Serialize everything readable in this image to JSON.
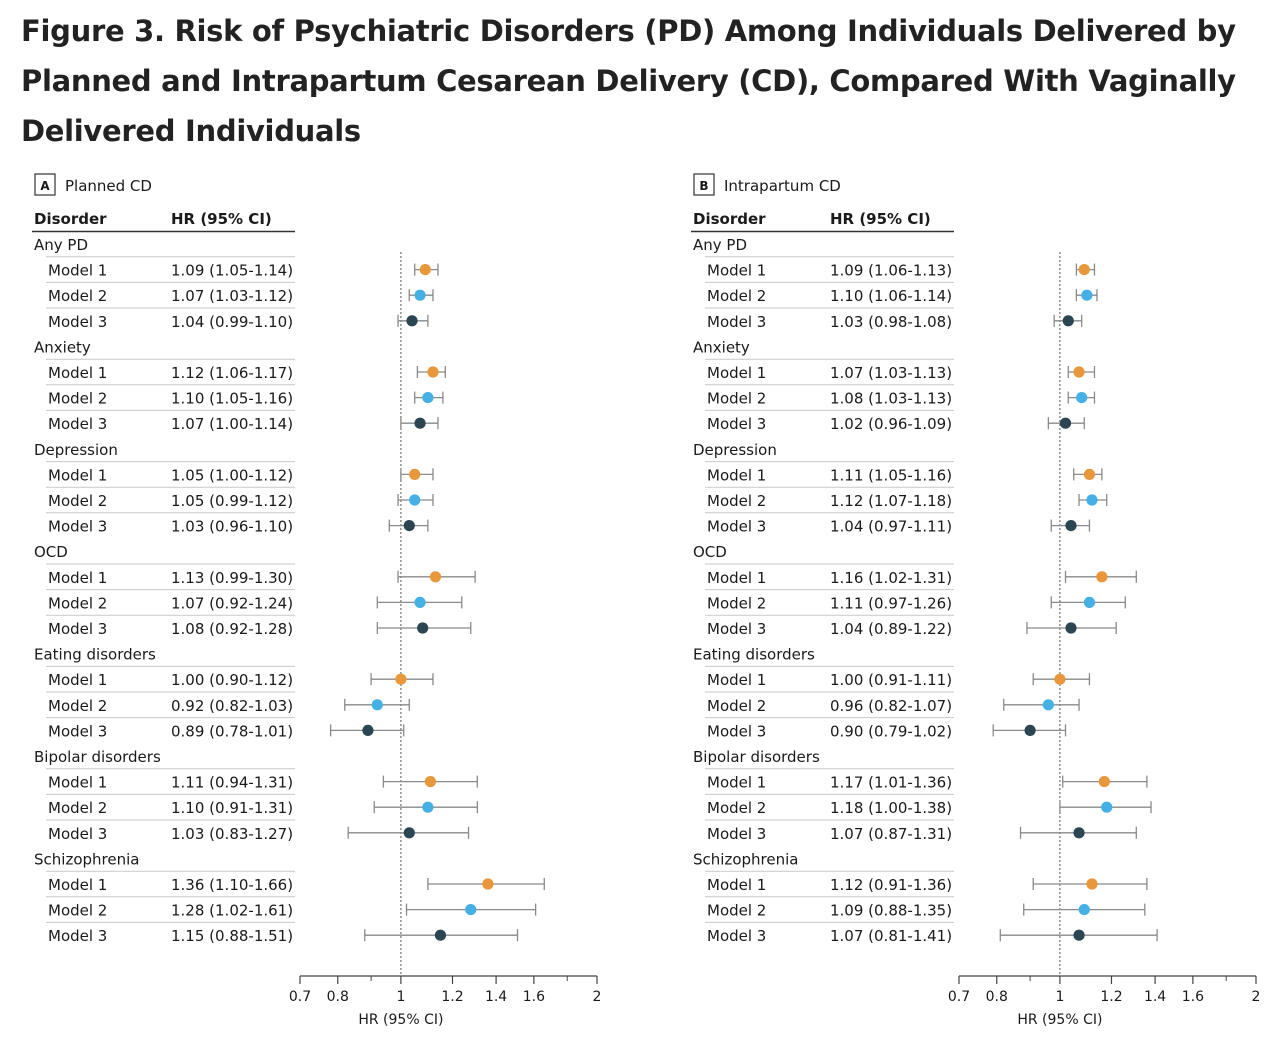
{
  "title": "Figure 3.  Risk of Psychiatric Disorders (PD) Among Individuals Delivered by Planned and Intrapartum Cesarean Delivery (CD), Compared With Vaginally Delivered Individuals",
  "colors": {
    "model_1": "#e8973a",
    "model_2": "#45b0e5",
    "model_3": "#2c4553",
    "ci_line": "#8a8a8a",
    "ref_line": "#555555"
  },
  "chart_data": [
    {
      "type": "forest",
      "panel_letter": "A",
      "panel_title": "Planned CD",
      "col_disorder": "Disorder",
      "col_hr": "HR (95% CI)",
      "xlabel": "HR (95% CI)",
      "xscale": "log",
      "xlim": [
        0.7,
        2
      ],
      "xticks": [
        "0.7",
        "0.8",
        "1",
        "1.2",
        "1.4",
        "1.6",
        "2"
      ],
      "reference": 1,
      "groups": [
        {
          "name": "Any PD",
          "rows": [
            {
              "model": "Model 1",
              "label": "1.09 (1.05-1.14)",
              "hr": 1.09,
              "lo": 1.05,
              "hi": 1.14
            },
            {
              "model": "Model 2",
              "label": "1.07 (1.03-1.12)",
              "hr": 1.07,
              "lo": 1.03,
              "hi": 1.12
            },
            {
              "model": "Model 3",
              "label": "1.04 (0.99-1.10)",
              "hr": 1.04,
              "lo": 0.99,
              "hi": 1.1
            }
          ]
        },
        {
          "name": "Anxiety",
          "rows": [
            {
              "model": "Model 1",
              "label": "1.12 (1.06-1.17)",
              "hr": 1.12,
              "lo": 1.06,
              "hi": 1.17
            },
            {
              "model": "Model 2",
              "label": "1.10 (1.05-1.16)",
              "hr": 1.1,
              "lo": 1.05,
              "hi": 1.16
            },
            {
              "model": "Model 3",
              "label": "1.07 (1.00-1.14)",
              "hr": 1.07,
              "lo": 1.0,
              "hi": 1.14
            }
          ]
        },
        {
          "name": "Depression",
          "rows": [
            {
              "model": "Model 1",
              "label": "1.05 (1.00-1.12)",
              "hr": 1.05,
              "lo": 1.0,
              "hi": 1.12
            },
            {
              "model": "Model 2",
              "label": "1.05 (0.99-1.12)",
              "hr": 1.05,
              "lo": 0.99,
              "hi": 1.12
            },
            {
              "model": "Model 3",
              "label": "1.03 (0.96-1.10)",
              "hr": 1.03,
              "lo": 0.96,
              "hi": 1.1
            }
          ]
        },
        {
          "name": "OCD",
          "rows": [
            {
              "model": "Model 1",
              "label": "1.13 (0.99-1.30)",
              "hr": 1.13,
              "lo": 0.99,
              "hi": 1.3
            },
            {
              "model": "Model 2",
              "label": "1.07 (0.92-1.24)",
              "hr": 1.07,
              "lo": 0.92,
              "hi": 1.24
            },
            {
              "model": "Model 3",
              "label": "1.08 (0.92-1.28)",
              "hr": 1.08,
              "lo": 0.92,
              "hi": 1.28
            }
          ]
        },
        {
          "name": "Eating disorders",
          "rows": [
            {
              "model": "Model 1",
              "label": "1.00 (0.90-1.12)",
              "hr": 1.0,
              "lo": 0.9,
              "hi": 1.12
            },
            {
              "model": "Model 2",
              "label": "0.92 (0.82-1.03)",
              "hr": 0.92,
              "lo": 0.82,
              "hi": 1.03
            },
            {
              "model": "Model 3",
              "label": "0.89 (0.78-1.01)",
              "hr": 0.89,
              "lo": 0.78,
              "hi": 1.01
            }
          ]
        },
        {
          "name": "Bipolar disorders",
          "rows": [
            {
              "model": "Model 1",
              "label": "1.11 (0.94-1.31)",
              "hr": 1.11,
              "lo": 0.94,
              "hi": 1.31
            },
            {
              "model": "Model 2",
              "label": "1.10 (0.91-1.31)",
              "hr": 1.1,
              "lo": 0.91,
              "hi": 1.31
            },
            {
              "model": "Model 3",
              "label": "1.03 (0.83-1.27)",
              "hr": 1.03,
              "lo": 0.83,
              "hi": 1.27
            }
          ]
        },
        {
          "name": "Schizophrenia",
          "rows": [
            {
              "model": "Model 1",
              "label": "1.36 (1.10-1.66)",
              "hr": 1.36,
              "lo": 1.1,
              "hi": 1.66
            },
            {
              "model": "Model 2",
              "label": "1.28 (1.02-1.61)",
              "hr": 1.28,
              "lo": 1.02,
              "hi": 1.61
            },
            {
              "model": "Model 3",
              "label": "1.15 (0.88-1.51)",
              "hr": 1.15,
              "lo": 0.88,
              "hi": 1.51
            }
          ]
        }
      ]
    },
    {
      "type": "forest",
      "panel_letter": "B",
      "panel_title": "Intrapartum CD",
      "col_disorder": "Disorder",
      "col_hr": "HR (95% CI)",
      "xlabel": "HR (95% CI)",
      "xscale": "log",
      "xlim": [
        0.7,
        2
      ],
      "xticks": [
        "0.7",
        "0.8",
        "1",
        "1.2",
        "1.4",
        "1.6",
        "2"
      ],
      "reference": 1,
      "groups": [
        {
          "name": "Any PD",
          "rows": [
            {
              "model": "Model 1",
              "label": "1.09 (1.06-1.13)",
              "hr": 1.09,
              "lo": 1.06,
              "hi": 1.13
            },
            {
              "model": "Model 2",
              "label": "1.10 (1.06-1.14)",
              "hr": 1.1,
              "lo": 1.06,
              "hi": 1.14
            },
            {
              "model": "Model 3",
              "label": "1.03 (0.98-1.08)",
              "hr": 1.03,
              "lo": 0.98,
              "hi": 1.08
            }
          ]
        },
        {
          "name": "Anxiety",
          "rows": [
            {
              "model": "Model 1",
              "label": "1.07 (1.03-1.13)",
              "hr": 1.07,
              "lo": 1.03,
              "hi": 1.13
            },
            {
              "model": "Model 2",
              "label": "1.08 (1.03-1.13)",
              "hr": 1.08,
              "lo": 1.03,
              "hi": 1.13
            },
            {
              "model": "Model 3",
              "label": "1.02 (0.96-1.09)",
              "hr": 1.02,
              "lo": 0.96,
              "hi": 1.09
            }
          ]
        },
        {
          "name": "Depression",
          "rows": [
            {
              "model": "Model 1",
              "label": "1.11 (1.05-1.16)",
              "hr": 1.11,
              "lo": 1.05,
              "hi": 1.16
            },
            {
              "model": "Model 2",
              "label": "1.12 (1.07-1.18)",
              "hr": 1.12,
              "lo": 1.07,
              "hi": 1.18
            },
            {
              "model": "Model 3",
              "label": "1.04 (0.97-1.11)",
              "hr": 1.04,
              "lo": 0.97,
              "hi": 1.11
            }
          ]
        },
        {
          "name": "OCD",
          "rows": [
            {
              "model": "Model 1",
              "label": "1.16 (1.02-1.31)",
              "hr": 1.16,
              "lo": 1.02,
              "hi": 1.31
            },
            {
              "model": "Model 2",
              "label": "1.11 (0.97-1.26)",
              "hr": 1.11,
              "lo": 0.97,
              "hi": 1.26
            },
            {
              "model": "Model 3",
              "label": "1.04 (0.89-1.22)",
              "hr": 1.04,
              "lo": 0.89,
              "hi": 1.22
            }
          ]
        },
        {
          "name": "Eating disorders",
          "rows": [
            {
              "model": "Model 1",
              "label": "1.00 (0.91-1.11)",
              "hr": 1.0,
              "lo": 0.91,
              "hi": 1.11
            },
            {
              "model": "Model 2",
              "label": "0.96 (0.82-1.07)",
              "hr": 0.96,
              "lo": 0.82,
              "hi": 1.07
            },
            {
              "model": "Model 3",
              "label": "0.90 (0.79-1.02)",
              "hr": 0.9,
              "lo": 0.79,
              "hi": 1.02
            }
          ]
        },
        {
          "name": "Bipolar disorders",
          "rows": [
            {
              "model": "Model 1",
              "label": "1.17 (1.01-1.36)",
              "hr": 1.17,
              "lo": 1.01,
              "hi": 1.36
            },
            {
              "model": "Model 2",
              "label": "1.18 (1.00-1.38)",
              "hr": 1.18,
              "lo": 1.0,
              "hi": 1.38
            },
            {
              "model": "Model 3",
              "label": "1.07 (0.87-1.31)",
              "hr": 1.07,
              "lo": 0.87,
              "hi": 1.31
            }
          ]
        },
        {
          "name": "Schizophrenia",
          "rows": [
            {
              "model": "Model 1",
              "label": "1.12 (0.91-1.36)",
              "hr": 1.12,
              "lo": 0.91,
              "hi": 1.36
            },
            {
              "model": "Model 2",
              "label": "1.09 (0.88-1.35)",
              "hr": 1.09,
              "lo": 0.88,
              "hi": 1.35
            },
            {
              "model": "Model 3",
              "label": "1.07 (0.81-1.41)",
              "hr": 1.07,
              "lo": 0.81,
              "hi": 1.41
            }
          ]
        }
      ]
    }
  ]
}
